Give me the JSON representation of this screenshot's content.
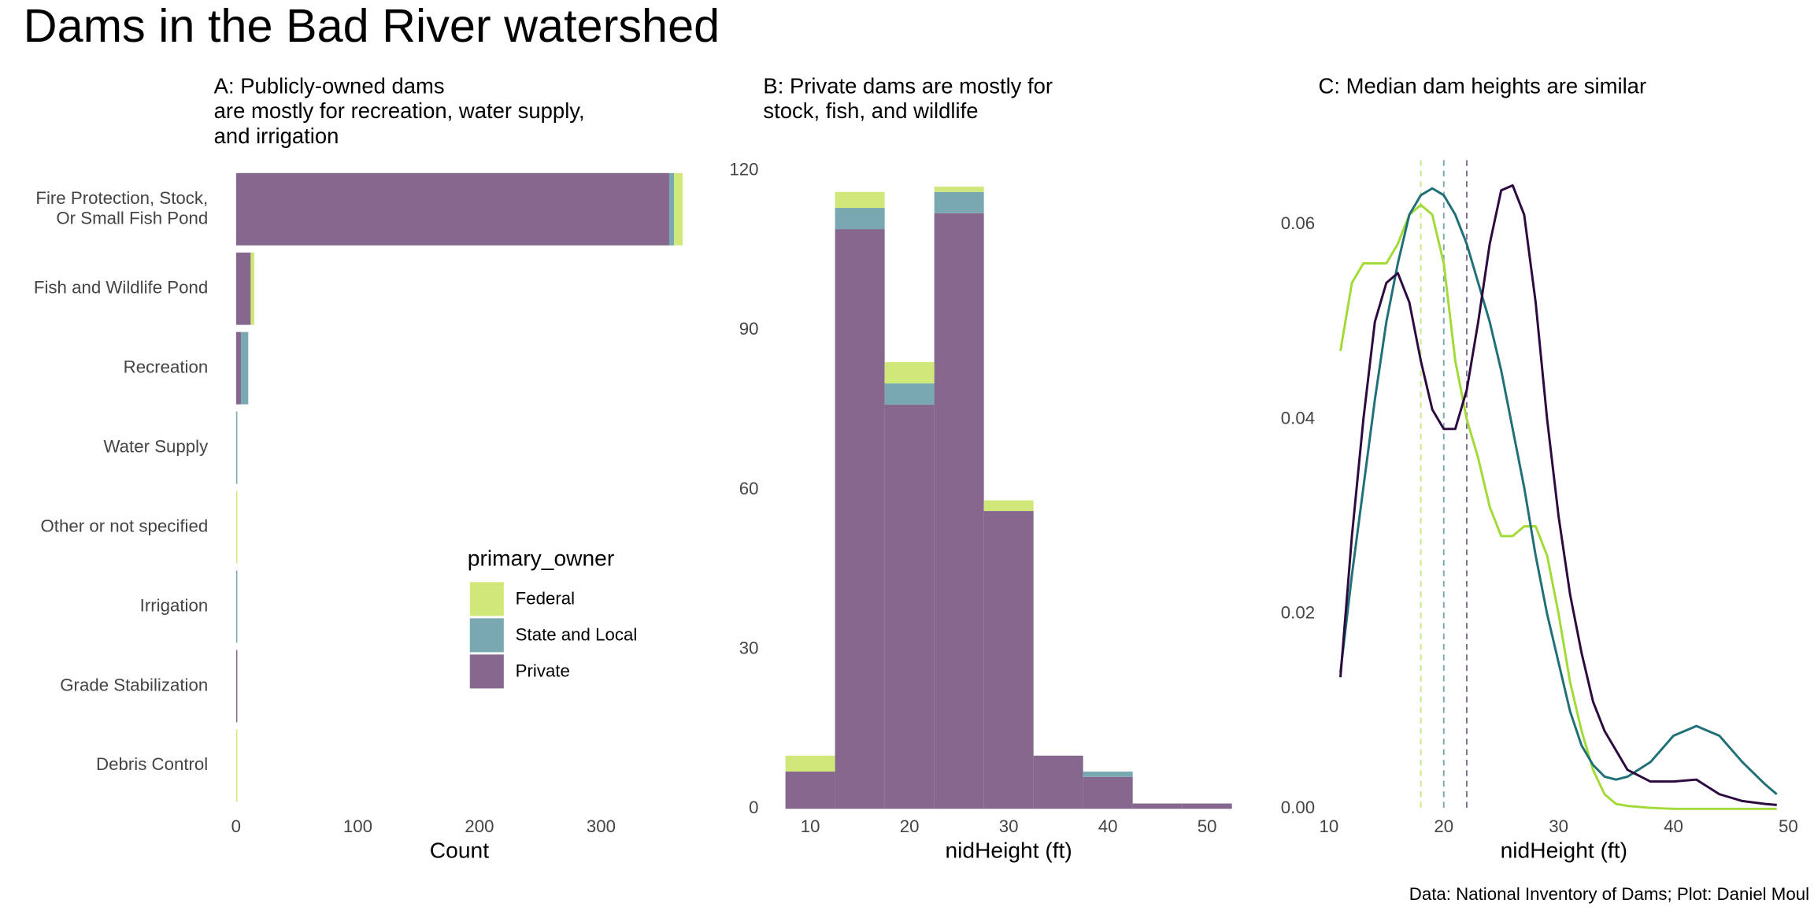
{
  "title": "Dams in the Bad River watershed",
  "caption": "Data: National Inventory of Dams; Plot: Daniel Moul",
  "chart_data": [
    {
      "type": "hbar-stacked",
      "title": "A: Publicly-owned dams\nare mostly for recreation, water supply,\nand irrigation",
      "categories": [
        "Fire Protection, Stock,\nOr Small Fish Pond",
        "Fish and Wildlife Pond",
        "Recreation",
        "Water Supply",
        "Other or not specified",
        "Irrigation",
        "Grade Stabilization",
        "Debris Control"
      ],
      "series": [
        {
          "name": "Federal",
          "color": "#d0e87a",
          "values": [
            7,
            3,
            0,
            0,
            1,
            0,
            0,
            1
          ]
        },
        {
          "name": "State and Local",
          "color": "#7aa8b0",
          "values": [
            4,
            0,
            6,
            1,
            0,
            1,
            0,
            0
          ]
        },
        {
          "name": "Private",
          "color": "#86678e",
          "values": [
            356,
            12,
            4,
            0,
            0,
            0,
            1,
            0
          ]
        }
      ],
      "xlabel": "Count",
      "xlim": [
        0,
        367
      ],
      "xticks": [
        0,
        100,
        200,
        300
      ],
      "legend_title": "primary_owner"
    },
    {
      "type": "histogram-stacked",
      "title": "B: Private dams are mostly for\nstock, fish, and wildlife",
      "bins": [
        7.5,
        12.5,
        17.5,
        22.5,
        27.5,
        32.5,
        37.5,
        42.5,
        47.5,
        52.5
      ],
      "series": [
        {
          "name": "Federal",
          "color": "#d0e87a",
          "values": [
            3,
            3,
            4,
            1,
            2,
            0,
            0,
            0,
            0
          ]
        },
        {
          "name": "State and Local",
          "color": "#7aa8b0",
          "values": [
            0,
            4,
            4,
            4,
            0,
            0,
            1,
            0,
            0
          ]
        },
        {
          "name": "Private",
          "color": "#86678e",
          "values": [
            7,
            109,
            76,
            112,
            56,
            10,
            6,
            1,
            1
          ]
        }
      ],
      "xlabel": "nidHeight (ft)",
      "xlim": [
        7.5,
        52.5
      ],
      "xticks": [
        10,
        20,
        30,
        40,
        50
      ],
      "ylim": [
        0,
        120
      ],
      "yticks": [
        0,
        30,
        60,
        90,
        120
      ]
    },
    {
      "type": "density",
      "title": "C: Median dam heights are similar",
      "x": [
        11,
        12,
        13,
        14,
        15,
        16,
        17,
        18,
        19,
        20,
        21,
        22,
        23,
        24,
        25,
        26,
        27,
        28,
        29,
        30,
        31,
        32,
        33,
        34,
        35,
        36,
        38,
        40,
        42,
        44,
        46,
        48,
        49
      ],
      "series": [
        {
          "name": "Federal",
          "color": "#a2da37",
          "median": 18,
          "values": [
            0.047,
            0.054,
            0.056,
            0.056,
            0.056,
            0.058,
            0.061,
            0.062,
            0.061,
            0.056,
            0.046,
            0.04,
            0.036,
            0.031,
            0.028,
            0.028,
            0.029,
            0.029,
            0.026,
            0.02,
            0.013,
            0.008,
            0.004,
            0.0015,
            0.0005,
            0.0003,
            0.0001,
            0,
            0,
            0,
            0,
            0,
            0
          ]
        },
        {
          "name": "State and Local",
          "color": "#1f7077",
          "median": 20,
          "values": [
            0.014,
            0.024,
            0.033,
            0.042,
            0.05,
            0.056,
            0.061,
            0.063,
            0.0637,
            0.063,
            0.061,
            0.058,
            0.054,
            0.05,
            0.045,
            0.039,
            0.033,
            0.026,
            0.02,
            0.015,
            0.01,
            0.0065,
            0.0045,
            0.0033,
            0.003,
            0.0033,
            0.0048,
            0.0075,
            0.0085,
            0.0075,
            0.0048,
            0.0025,
            0.0015
          ]
        },
        {
          "name": "Private",
          "color": "#2c0a3f",
          "median": 22,
          "values": [
            0.0135,
            0.028,
            0.04,
            0.05,
            0.054,
            0.055,
            0.052,
            0.046,
            0.041,
            0.039,
            0.039,
            0.043,
            0.05,
            0.058,
            0.0635,
            0.064,
            0.061,
            0.052,
            0.04,
            0.03,
            0.022,
            0.016,
            0.011,
            0.008,
            0.006,
            0.004,
            0.0028,
            0.0028,
            0.003,
            0.0015,
            0.0008,
            0.0005,
            0.0004
          ]
        }
      ],
      "xlabel": "nidHeight (ft)",
      "xlim": [
        10,
        50
      ],
      "xticks": [
        10,
        20,
        30,
        40,
        50
      ],
      "ylim": [
        0,
        0.066
      ],
      "yticks": [
        {
          "value": 0,
          "label": "0.00"
        },
        {
          "value": 0.02,
          "label": "0.02"
        },
        {
          "value": 0.04,
          "label": "0.04"
        },
        {
          "value": 0.06,
          "label": "0.06"
        }
      ]
    }
  ]
}
